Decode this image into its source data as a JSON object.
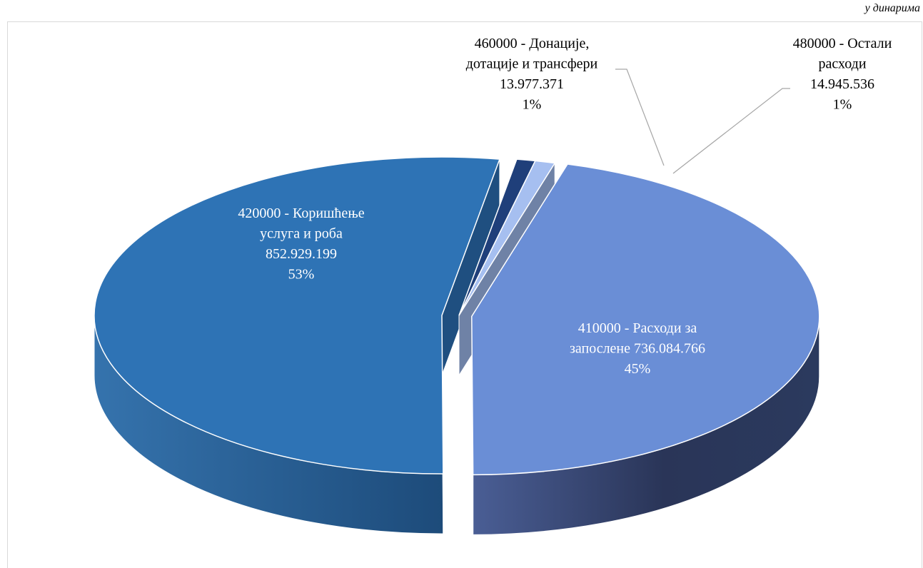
{
  "unit_note": "у динарима",
  "chart_data": {
    "type": "pie",
    "style": "3d-exploded",
    "slices": [
      {
        "code": "410000",
        "label_lines": [
          "410000 - Расходи за",
          "запослене 736.084.766",
          "45%"
        ],
        "name": "410000 - Расходи за запослене",
        "value": 736084766,
        "percent": "45%",
        "color": "#6a8ed6"
      },
      {
        "code": "420000",
        "label_lines": [
          "420000 - Коришћење",
          "услуга и роба",
          "852.929.199",
          "53%"
        ],
        "name": "420000 - Коришћење услуга и роба",
        "value": 852929199,
        "percent": "53%",
        "color": "#2e73b5"
      },
      {
        "code": "460000",
        "label_lines": [
          "460000 - Донације,",
          "дотације и трансфери",
          "13.977.371",
          "1%"
        ],
        "name": "460000 - Донације, дотације и трансфери",
        "value": 13977371,
        "percent": "1%",
        "color": "#1f3f7a"
      },
      {
        "code": "480000",
        "label_lines": [
          "480000 - Остали",
          "расходи",
          "14.945.536",
          "1%"
        ],
        "name": "480000 - Остали расходи",
        "value": 14945536,
        "percent": "1%",
        "color": "#a6bff0"
      }
    ],
    "label_color_inside": "#ffffff",
    "label_color_outside": "#000000"
  }
}
